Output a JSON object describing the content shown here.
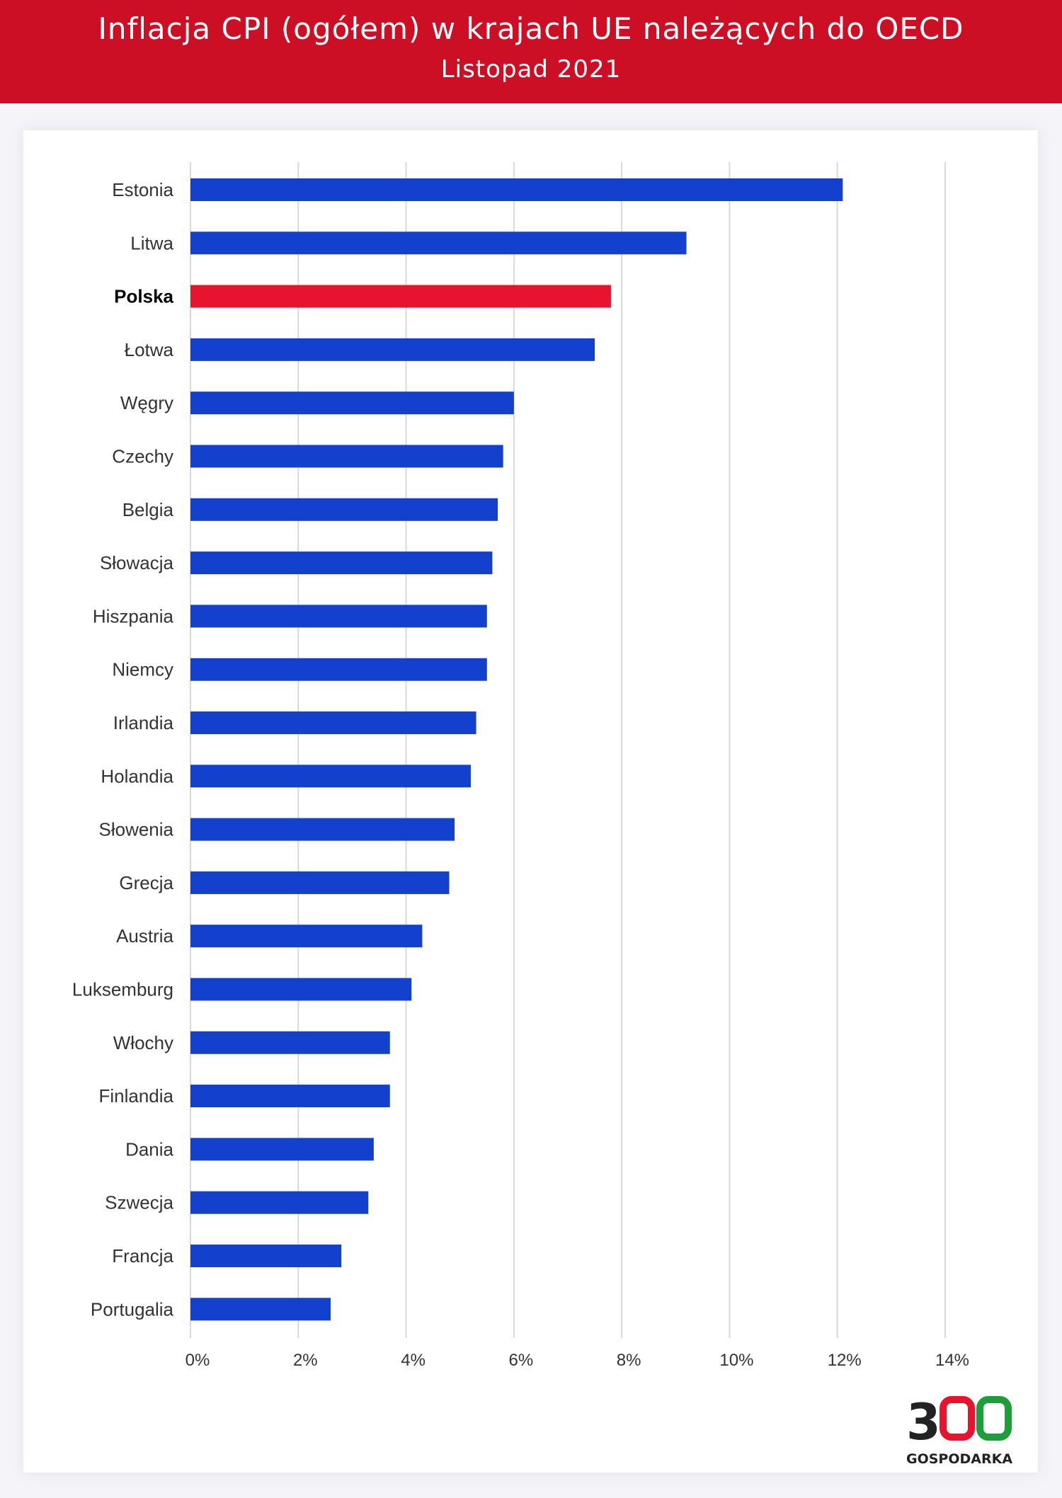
{
  "header": {
    "title": "Inflacja CPI (ogółem) w krajach UE należących do OECD",
    "subtitle": "Listopad 2021"
  },
  "logo": {
    "digit_3": "3",
    "digit_0_red": "0",
    "digit_0_green": "0",
    "brand": "GOSPODARKA"
  },
  "colors": {
    "header_bg": "#cc0f25",
    "bar_default": "#1340cc",
    "bar_highlight": "#e8142f",
    "grid": "#d9d9d9",
    "logo_dark": "#222222",
    "logo_red": "#e8142f",
    "logo_green": "#1e9e3a"
  },
  "chart_data": {
    "type": "bar",
    "orientation": "horizontal",
    "title": "",
    "xlabel": "",
    "ylabel": "",
    "categories": [
      "Estonia",
      "Litwa",
      "Polska",
      "Łotwa",
      "Węgry",
      "Czechy",
      "Belgia",
      "Słowacja",
      "Hiszpania",
      "Niemcy",
      "Irlandia",
      "Holandia",
      "Słowenia",
      "Grecja",
      "Austria",
      "Luksemburg",
      "Włochy",
      "Finlandia",
      "Dania",
      "Szwecja",
      "Francja",
      "Portugalia"
    ],
    "values": [
      12.1,
      9.2,
      7.8,
      7.5,
      6.0,
      5.8,
      5.7,
      5.6,
      5.5,
      5.5,
      5.3,
      5.2,
      4.9,
      4.8,
      4.3,
      4.1,
      3.7,
      3.7,
      3.4,
      3.3,
      2.8,
      2.6
    ],
    "highlight": "Polska",
    "xlim": [
      0,
      14
    ],
    "xticks": [
      0,
      2,
      4,
      6,
      8,
      10,
      12,
      14
    ],
    "xtick_labels": [
      "0%",
      "2%",
      "4%",
      "6%",
      "8%",
      "10%",
      "12%",
      "14%"
    ],
    "grid": true,
    "legend": "none"
  }
}
